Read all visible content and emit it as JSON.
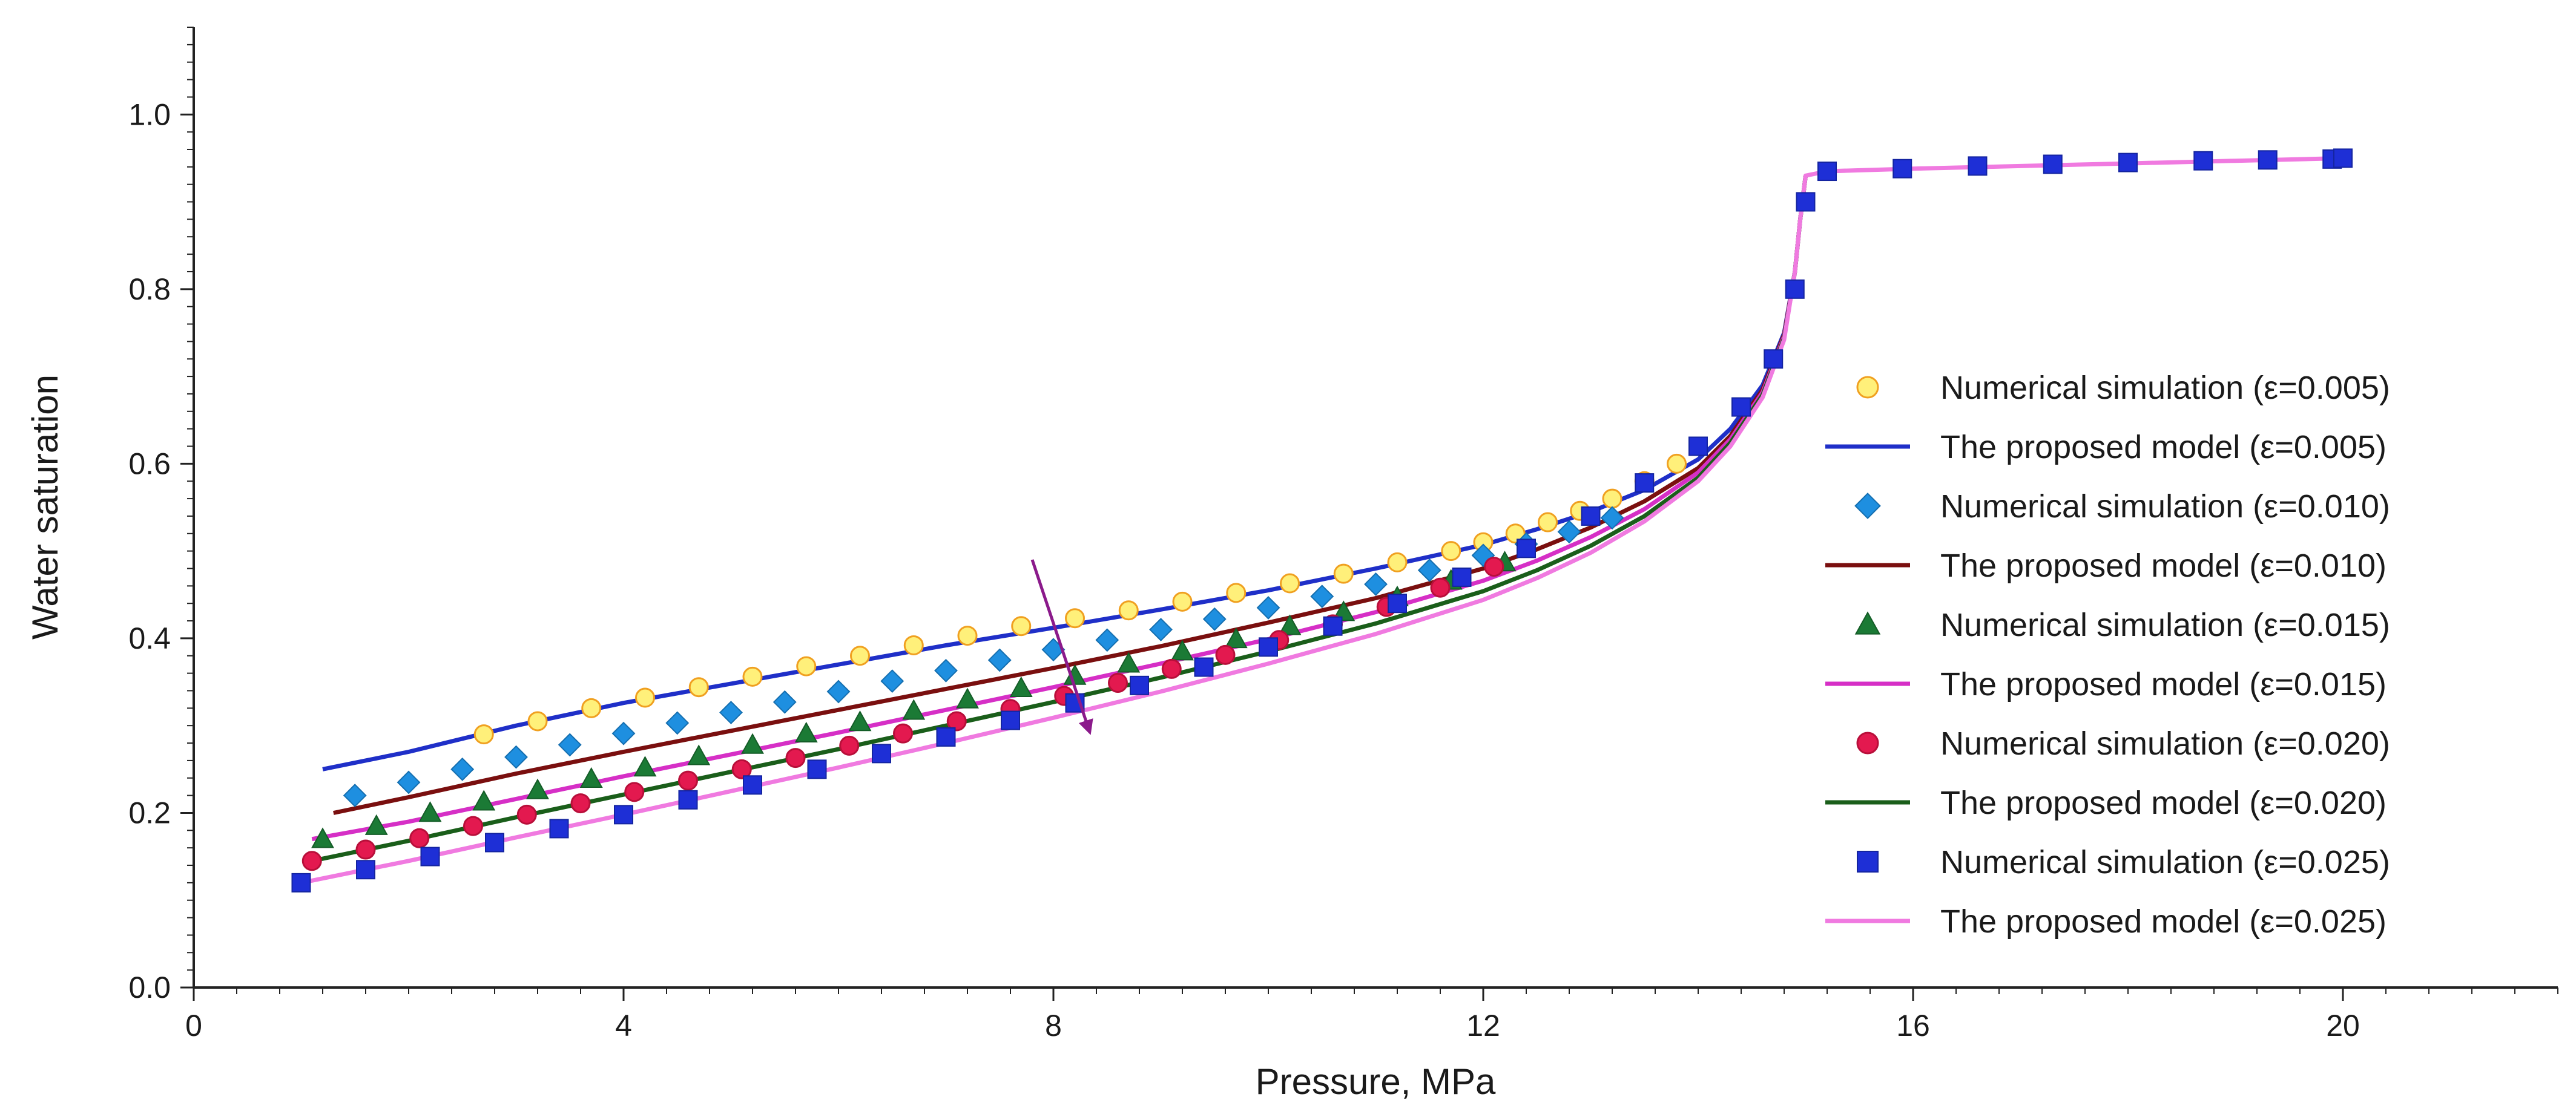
{
  "chart_data": {
    "type": "scatter",
    "title": "",
    "xlabel": "Pressure, MPa",
    "ylabel": "Water saturation",
    "xlim": [
      0,
      22
    ],
    "ylim": [
      0,
      1.1
    ],
    "xticks": [
      0,
      4,
      8,
      12,
      16,
      20
    ],
    "yticks": [
      0.0,
      0.2,
      0.4,
      0.6,
      0.8,
      1.0
    ],
    "xtick_labels": [
      "0",
      "4",
      "8",
      "12",
      "16",
      "20"
    ],
    "ytick_labels": [
      "0.0",
      "0.2",
      "0.4",
      "0.6",
      "0.8",
      "1.0"
    ],
    "legend_position": "right",
    "annotation": "arrow indicating increasing ε (from about (7.6, 0.49) to (8.3, 0.29))",
    "series": [
      {
        "name": "Numerical simulation (ε=0.005)",
        "kind": "markers",
        "marker": "circle",
        "color": "#ff2a2a",
        "edge": "#f0a020",
        "fill": "#fff07a",
        "x": [
          2.7,
          3.2,
          3.7,
          4.2,
          4.7,
          5.2,
          5.7,
          6.2,
          6.7,
          7.2,
          7.7,
          8.2,
          8.7,
          9.2,
          9.7,
          10.2,
          10.7,
          11.2,
          11.7,
          12.0,
          12.3,
          12.6,
          12.9,
          13.2,
          13.5,
          13.8
        ],
        "y": [
          0.29,
          0.305,
          0.32,
          0.332,
          0.344,
          0.356,
          0.368,
          0.38,
          0.392,
          0.403,
          0.414,
          0.423,
          0.432,
          0.442,
          0.452,
          0.463,
          0.474,
          0.487,
          0.5,
          0.51,
          0.52,
          0.533,
          0.546,
          0.56,
          0.58,
          0.6
        ]
      },
      {
        "name": "The proposed model (ε=0.005)",
        "kind": "line",
        "color": "#1f2fc8",
        "x": [
          1.2,
          2.0,
          3.0,
          4.0,
          5.0,
          6.0,
          7.0,
          8.0,
          9.0,
          10.0,
          11.0,
          12.0,
          12.5,
          13.0,
          13.5,
          14.0,
          14.3,
          14.6,
          14.8,
          14.9,
          14.95,
          15.0
        ],
        "y": [
          0.25,
          0.27,
          0.3,
          0.326,
          0.348,
          0.37,
          0.392,
          0.412,
          0.433,
          0.455,
          0.48,
          0.507,
          0.525,
          0.545,
          0.57,
          0.605,
          0.64,
          0.69,
          0.75,
          0.82,
          0.88,
          0.93
        ]
      },
      {
        "name": "Numerical simulation (ε=0.010)",
        "kind": "markers",
        "marker": "diamond",
        "color": "#1e8fe0",
        "x": [
          1.5,
          2.0,
          2.5,
          3.0,
          3.5,
          4.0,
          4.5,
          5.0,
          5.5,
          6.0,
          6.5,
          7.0,
          7.5,
          8.0,
          8.5,
          9.0,
          9.5,
          10.0,
          10.5,
          11.0,
          11.5,
          12.0,
          12.4,
          12.8,
          13.2
        ],
        "y": [
          0.22,
          0.235,
          0.25,
          0.264,
          0.278,
          0.291,
          0.303,
          0.315,
          0.327,
          0.339,
          0.351,
          0.363,
          0.375,
          0.387,
          0.398,
          0.41,
          0.422,
          0.435,
          0.448,
          0.462,
          0.478,
          0.495,
          0.508,
          0.522,
          0.538
        ]
      },
      {
        "name": "The proposed model (ε=0.010)",
        "kind": "line",
        "color": "#7a0f0f",
        "x": [
          1.3,
          2.0,
          3.0,
          4.0,
          5.0,
          6.0,
          7.0,
          8.0,
          9.0,
          10.0,
          11.0,
          12.0,
          12.5,
          13.0,
          13.5,
          14.0,
          14.3,
          14.6,
          14.8,
          14.9,
          14.95,
          15.0
        ],
        "y": [
          0.2,
          0.218,
          0.245,
          0.27,
          0.294,
          0.318,
          0.342,
          0.366,
          0.391,
          0.418,
          0.446,
          0.48,
          0.502,
          0.527,
          0.557,
          0.595,
          0.632,
          0.685,
          0.748,
          0.82,
          0.88,
          0.93
        ]
      },
      {
        "name": "Numerical simulation (ε=0.015)",
        "kind": "markers",
        "marker": "triangle",
        "color": "#1b7a35",
        "x": [
          1.2,
          1.7,
          2.2,
          2.7,
          3.2,
          3.7,
          4.2,
          4.7,
          5.2,
          5.7,
          6.2,
          6.7,
          7.2,
          7.7,
          8.2,
          8.7,
          9.2,
          9.7,
          10.2,
          10.7,
          11.2,
          11.7,
          12.2
        ],
        "y": [
          0.17,
          0.185,
          0.2,
          0.213,
          0.226,
          0.239,
          0.252,
          0.265,
          0.278,
          0.291,
          0.304,
          0.317,
          0.33,
          0.343,
          0.357,
          0.371,
          0.385,
          0.399,
          0.414,
          0.43,
          0.447,
          0.466,
          0.487
        ]
      },
      {
        "name": "The proposed model (ε=0.015)",
        "kind": "line",
        "color": "#d62fc6",
        "x": [
          1.1,
          2.0,
          3.0,
          4.0,
          5.0,
          6.0,
          7.0,
          8.0,
          9.0,
          10.0,
          11.0,
          12.0,
          12.5,
          13.0,
          13.5,
          14.0,
          14.3,
          14.6,
          14.8,
          14.9,
          14.95,
          15.0
        ],
        "y": [
          0.17,
          0.19,
          0.216,
          0.242,
          0.267,
          0.292,
          0.318,
          0.344,
          0.371,
          0.399,
          0.43,
          0.466,
          0.489,
          0.516,
          0.548,
          0.59,
          0.628,
          0.682,
          0.746,
          0.82,
          0.88,
          0.93
        ]
      },
      {
        "name": "Numerical simulation (ε=0.020)",
        "kind": "markers",
        "marker": "circle",
        "color": "#e3194f",
        "edge": "#b80f3a",
        "fill": "#e3194f",
        "x": [
          1.1,
          1.6,
          2.1,
          2.6,
          3.1,
          3.6,
          4.1,
          4.6,
          5.1,
          5.6,
          6.1,
          6.6,
          7.1,
          7.6,
          8.1,
          8.6,
          9.1,
          9.6,
          10.1,
          10.6,
          11.1,
          11.6,
          12.1
        ],
        "y": [
          0.145,
          0.158,
          0.171,
          0.185,
          0.198,
          0.211,
          0.224,
          0.237,
          0.25,
          0.263,
          0.277,
          0.291,
          0.305,
          0.319,
          0.334,
          0.349,
          0.365,
          0.381,
          0.398,
          0.416,
          0.436,
          0.458,
          0.482
        ]
      },
      {
        "name": "The proposed model (ε=0.020)",
        "kind": "line",
        "color": "#1a5e1a",
        "x": [
          1.1,
          2.0,
          3.0,
          4.0,
          5.0,
          6.0,
          7.0,
          8.0,
          9.0,
          10.0,
          11.0,
          12.0,
          12.5,
          13.0,
          13.5,
          14.0,
          14.3,
          14.6,
          14.8,
          14.9,
          14.95,
          15.0
        ],
        "y": [
          0.145,
          0.168,
          0.195,
          0.221,
          0.247,
          0.273,
          0.3,
          0.327,
          0.355,
          0.385,
          0.417,
          0.454,
          0.478,
          0.506,
          0.54,
          0.584,
          0.624,
          0.679,
          0.744,
          0.82,
          0.88,
          0.93
        ]
      },
      {
        "name": "Numerical simulation (ε=0.025)",
        "kind": "markers",
        "marker": "square",
        "color": "#1e2fd6",
        "x": [
          1.0,
          1.6,
          2.2,
          2.8,
          3.4,
          4.0,
          4.6,
          5.2,
          5.8,
          6.4,
          7.0,
          7.6,
          8.2,
          8.8,
          9.4,
          10.0,
          10.6,
          11.2,
          11.8,
          12.4,
          13.0,
          13.5,
          14.0,
          14.4,
          14.7,
          14.9,
          15.0,
          15.2,
          15.9,
          16.6,
          17.3,
          18.0,
          18.7,
          19.3,
          19.9,
          20.0
        ],
        "y": [
          0.12,
          0.135,
          0.15,
          0.166,
          0.182,
          0.198,
          0.215,
          0.232,
          0.25,
          0.268,
          0.287,
          0.306,
          0.326,
          0.346,
          0.367,
          0.39,
          0.414,
          0.44,
          0.47,
          0.503,
          0.54,
          0.578,
          0.62,
          0.665,
          0.72,
          0.8,
          0.9,
          0.935,
          0.938,
          0.941,
          0.943,
          0.945,
          0.947,
          0.948,
          0.949,
          0.95
        ]
      },
      {
        "name": "The proposed model (ε=0.025)",
        "kind": "line",
        "color": "#f07ae0",
        "x": [
          1.0,
          2.0,
          3.0,
          4.0,
          5.0,
          6.0,
          7.0,
          8.0,
          9.0,
          10.0,
          11.0,
          12.0,
          12.5,
          13.0,
          13.5,
          14.0,
          14.3,
          14.6,
          14.8,
          14.9,
          14.95,
          15.0,
          15.2,
          16.0,
          17.0,
          18.0,
          19.0,
          20.0
        ],
        "y": [
          0.12,
          0.145,
          0.172,
          0.198,
          0.225,
          0.252,
          0.28,
          0.309,
          0.339,
          0.371,
          0.405,
          0.444,
          0.469,
          0.498,
          0.534,
          0.58,
          0.62,
          0.676,
          0.742,
          0.82,
          0.88,
          0.93,
          0.935,
          0.938,
          0.941,
          0.944,
          0.947,
          0.95
        ]
      }
    ]
  }
}
